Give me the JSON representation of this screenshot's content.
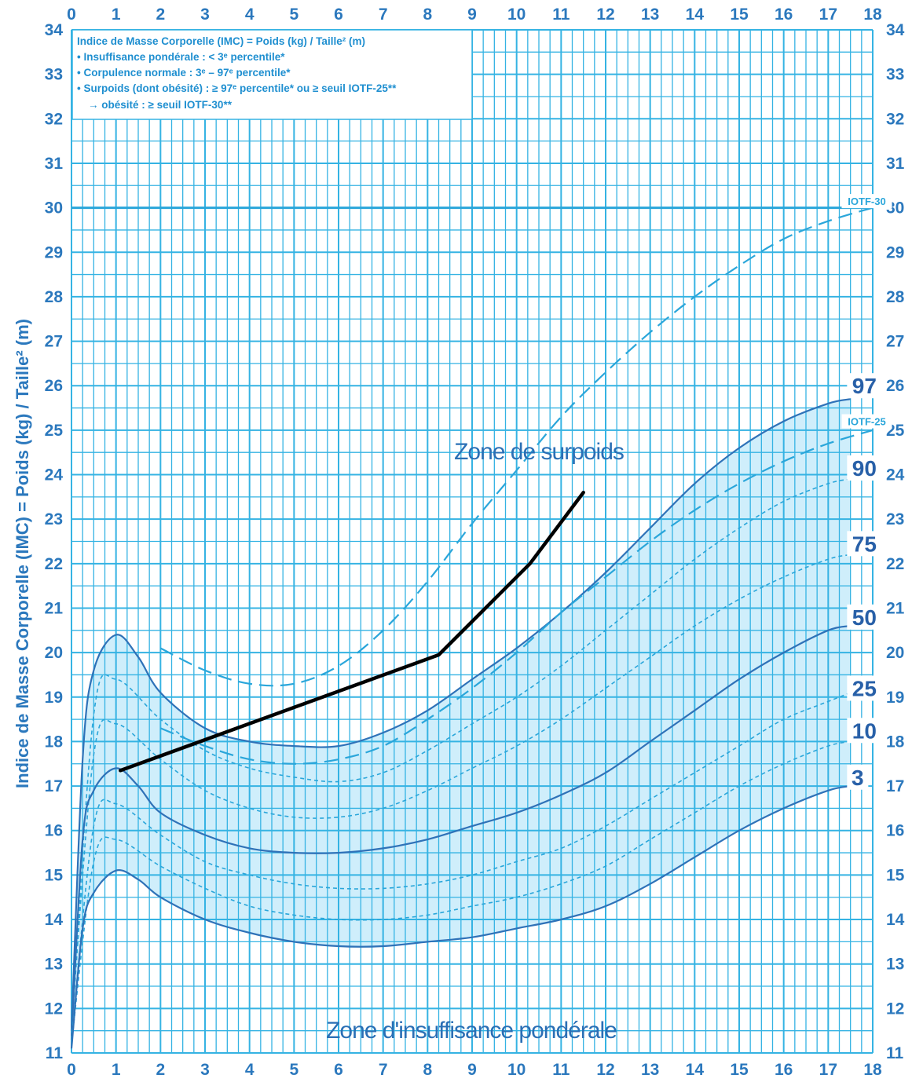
{
  "chart_data": {
    "type": "line",
    "ylabel": "Indice de Masse Corporelle (IMC) = Poids (kg) / Taille² (m)",
    "xlim": [
      0,
      18
    ],
    "ylim": [
      11,
      34
    ],
    "x_ticks": [
      0,
      1,
      2,
      3,
      4,
      5,
      6,
      7,
      8,
      9,
      10,
      11,
      12,
      13,
      14,
      15,
      16,
      17,
      18
    ],
    "y_ticks": [
      11,
      12,
      13,
      14,
      15,
      16,
      17,
      18,
      19,
      20,
      21,
      22,
      23,
      24,
      25,
      26,
      27,
      28,
      29,
      30,
      31,
      32,
      33,
      34
    ],
    "grid": true,
    "legend_lines": [
      "Indice de Masse Corporelle (IMC) = Poids (kg) / Taille² (m)",
      "• Insuffisance pondérale : < 3ᵉ percentile*",
      "• Corpulence normale : 3ᵉ – 97ᵉ percentile*",
      "• Surpoids (dont obésité) : ≥ 97ᵉ percentile* ou ≥ seuil IOTF-25**",
      "→ obésité : ≥ seuil IOTF-30**"
    ],
    "annotations": {
      "zone_surpoids": "Zone de surpoids",
      "zone_insuffisance": "Zone d'insuffisance pondérale"
    },
    "series": [
      {
        "name": "97",
        "style": "solid",
        "x": [
          0,
          0.25,
          0.5,
          1,
          1.5,
          2,
          3,
          4,
          5,
          6,
          7,
          8,
          9,
          10,
          11,
          12,
          13,
          14,
          15,
          16,
          17,
          17.5
        ],
        "y": [
          11.5,
          17.6,
          19.6,
          20.4,
          19.9,
          19.1,
          18.3,
          18.0,
          17.9,
          17.9,
          18.2,
          18.7,
          19.4,
          20.1,
          20.9,
          21.8,
          22.8,
          23.8,
          24.6,
          25.2,
          25.6,
          25.7
        ]
      },
      {
        "name": "90",
        "style": "dotted",
        "x": [
          0,
          0.5,
          1,
          2,
          3,
          4,
          5,
          6,
          7,
          8,
          9,
          10,
          11,
          12,
          13,
          14,
          15,
          16,
          17,
          17.5
        ],
        "y": [
          11.5,
          18.6,
          19.4,
          18.5,
          17.8,
          17.4,
          17.2,
          17.1,
          17.3,
          17.8,
          18.4,
          19.0,
          19.7,
          20.5,
          21.3,
          22.1,
          22.8,
          23.4,
          23.8,
          23.9
        ]
      },
      {
        "name": "75",
        "style": "dotted",
        "x": [
          0,
          0.5,
          1,
          2,
          3,
          4,
          5,
          6,
          7,
          8,
          9,
          10,
          11,
          12,
          13,
          14,
          15,
          16,
          17,
          17.5
        ],
        "y": [
          11.5,
          17.7,
          18.4,
          17.6,
          16.9,
          16.5,
          16.3,
          16.3,
          16.5,
          16.9,
          17.4,
          17.9,
          18.5,
          19.2,
          19.9,
          20.6,
          21.2,
          21.7,
          22.1,
          22.2
        ]
      },
      {
        "name": "50",
        "style": "solid",
        "x": [
          0,
          0.25,
          0.5,
          1,
          1.5,
          2,
          3,
          4,
          5,
          6,
          7,
          8,
          9,
          10,
          11,
          12,
          13,
          14,
          15,
          16,
          17,
          17.5
        ],
        "y": [
          11.3,
          15.8,
          16.9,
          17.4,
          17.0,
          16.4,
          15.9,
          15.6,
          15.5,
          15.5,
          15.6,
          15.8,
          16.1,
          16.4,
          16.8,
          17.3,
          18.0,
          18.7,
          19.4,
          20.0,
          20.5,
          20.6
        ]
      },
      {
        "name": "25",
        "style": "dotted",
        "x": [
          0,
          0.5,
          1,
          2,
          3,
          4,
          5,
          6,
          7,
          8,
          9,
          10,
          11,
          12,
          13,
          14,
          15,
          16,
          17,
          17.5
        ],
        "y": [
          11.3,
          16.1,
          16.6,
          15.9,
          15.3,
          15.0,
          14.8,
          14.7,
          14.7,
          14.8,
          15.0,
          15.3,
          15.6,
          16.1,
          16.7,
          17.3,
          17.9,
          18.5,
          18.9,
          19.1
        ]
      },
      {
        "name": "10",
        "style": "dotted",
        "x": [
          0,
          0.5,
          1,
          2,
          3,
          4,
          5,
          6,
          7,
          8,
          9,
          10,
          11,
          12,
          13,
          14,
          15,
          16,
          17,
          17.5
        ],
        "y": [
          11.2,
          15.3,
          15.8,
          15.2,
          14.7,
          14.3,
          14.1,
          14.0,
          14.0,
          14.1,
          14.3,
          14.5,
          14.8,
          15.2,
          15.8,
          16.4,
          17.0,
          17.5,
          17.9,
          18.0
        ]
      },
      {
        "name": "3",
        "style": "solid",
        "x": [
          0,
          0.25,
          0.5,
          1,
          1.5,
          2,
          3,
          4,
          5,
          6,
          7,
          8,
          9,
          10,
          11,
          12,
          13,
          14,
          15,
          16,
          17,
          17.5
        ],
        "y": [
          11.1,
          13.8,
          14.6,
          15.1,
          14.9,
          14.5,
          14.0,
          13.7,
          13.5,
          13.4,
          13.4,
          13.5,
          13.6,
          13.8,
          14.0,
          14.3,
          14.8,
          15.4,
          16.0,
          16.5,
          16.9,
          17.0
        ]
      },
      {
        "name": "IOTF-25",
        "style": "dashed",
        "x": [
          2,
          3,
          4,
          5,
          6,
          7,
          8,
          9,
          10,
          11,
          12,
          13,
          14,
          15,
          16,
          17,
          18
        ],
        "y": [
          18.3,
          17.9,
          17.6,
          17.5,
          17.6,
          17.9,
          18.5,
          19.2,
          20.0,
          20.9,
          21.7,
          22.5,
          23.2,
          23.8,
          24.3,
          24.7,
          25.0
        ]
      },
      {
        "name": "IOTF-30",
        "style": "dashed",
        "x": [
          2,
          3,
          4,
          5,
          6,
          7,
          8,
          9,
          10,
          11,
          12,
          13,
          14,
          15,
          16,
          17,
          18
        ],
        "y": [
          20.1,
          19.6,
          19.3,
          19.3,
          19.7,
          20.5,
          21.6,
          22.9,
          24.1,
          25.3,
          26.3,
          27.2,
          28.0,
          28.7,
          29.3,
          29.7,
          30.0
        ]
      },
      {
        "name": "IOTF-30-line",
        "style": "solid-horizontal",
        "x": [
          0,
          18
        ],
        "y": [
          30,
          30
        ]
      },
      {
        "name": "patient",
        "style": "bold-black",
        "x": [
          1.1,
          8.25,
          10.3,
          11.5
        ],
        "y": [
          17.35,
          19.95,
          22.0,
          23.6
        ]
      }
    ],
    "percentile_labels": [
      {
        "text": "97",
        "x": 17.6,
        "y": 26.0
      },
      {
        "text": "IOTF-25",
        "x": 17.55,
        "y": 25.2
      },
      {
        "text": "90",
        "x": 17.6,
        "y": 24.15
      },
      {
        "text": "75",
        "x": 17.6,
        "y": 22.45
      },
      {
        "text": "50",
        "x": 17.6,
        "y": 20.8
      },
      {
        "text": "25",
        "x": 17.6,
        "y": 19.2
      },
      {
        "text": "10",
        "x": 17.6,
        "y": 18.25
      },
      {
        "text": "3",
        "x": 17.6,
        "y": 17.2
      },
      {
        "text": "IOTF-30",
        "x": 17.55,
        "y": 30.15
      }
    ],
    "colors": {
      "grid": "#35b3e3",
      "axis_text": "#2b78bd",
      "curve": "#2f72b8",
      "dash": "#2aa6da",
      "fill": "#cfeefb",
      "patient": "#000000"
    }
  }
}
